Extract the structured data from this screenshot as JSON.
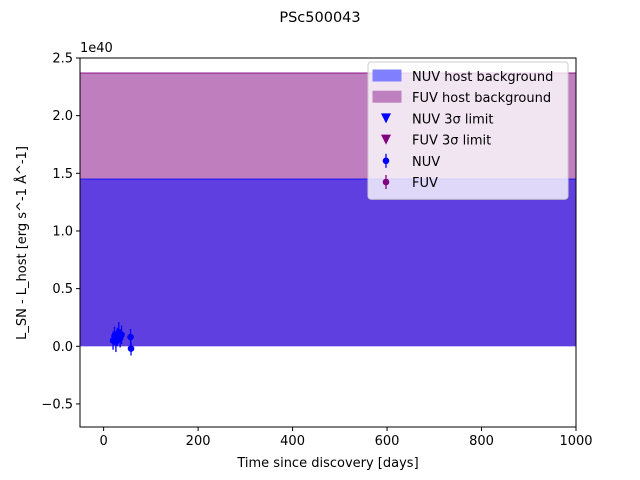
{
  "chart_data": {
    "type": "scatter",
    "title": "PSc500043",
    "xlabel": "Time since discovery [days]",
    "ylabel": "L_SN - L_host [erg s^-1 Å^-1]",
    "y_offset_label": "1e40",
    "xlim": [
      -50,
      1000
    ],
    "ylim": [
      -0.7,
      2.5
    ],
    "x_ticks": [
      0,
      200,
      400,
      600,
      800,
      1000
    ],
    "y_ticks": [
      -0.5,
      0.0,
      0.5,
      1.0,
      1.5,
      2.0,
      2.5
    ],
    "x_tick_labels": [
      "0",
      "200",
      "400",
      "600",
      "800",
      "1000"
    ],
    "y_tick_labels": [
      "−0.5",
      "0.0",
      "0.5",
      "1.0",
      "1.5",
      "2.0",
      "2.5"
    ],
    "grid": false,
    "legend_position": "top-right",
    "bands": [
      {
        "name": "NUV host background",
        "y_min": 0.0,
        "y_max": 1.45,
        "color": "#0000ff",
        "alpha": 0.5
      },
      {
        "name": "FUV host background",
        "y_min": 0.0,
        "y_max": 2.37,
        "color": "#800080",
        "alpha": 0.5
      }
    ],
    "legend": [
      {
        "label": "NUV host background",
        "marker": "patch",
        "color": "#8080ff"
      },
      {
        "label": "FUV host background",
        "marker": "patch",
        "color": "#bf80bf"
      },
      {
        "label": "NUV 3σ limit",
        "marker": "triangle-down",
        "color": "#0000ff"
      },
      {
        "label": "FUV 3σ limit",
        "marker": "triangle-down",
        "color": "#800080"
      },
      {
        "label": "NUV",
        "marker": "errorbar-point",
        "color": "#0000ff"
      },
      {
        "label": "FUV",
        "marker": "errorbar-point",
        "color": "#800080"
      }
    ],
    "series": [
      {
        "name": "NUV",
        "color": "#0000ff",
        "points": [
          {
            "x": 20,
            "y": 0.05,
            "err": 0.08
          },
          {
            "x": 23,
            "y": 0.09,
            "err": 0.08
          },
          {
            "x": 26,
            "y": 0.04,
            "err": 0.09
          },
          {
            "x": 29,
            "y": 0.08,
            "err": 0.08
          },
          {
            "x": 32,
            "y": 0.12,
            "err": 0.09
          },
          {
            "x": 35,
            "y": 0.07,
            "err": 0.08
          },
          {
            "x": 38,
            "y": 0.1,
            "err": 0.08
          },
          {
            "x": 57,
            "y": 0.08,
            "err": 0.07
          },
          {
            "x": 58,
            "y": -0.02,
            "err": 0.06
          }
        ]
      },
      {
        "name": "FUV",
        "color": "#800080",
        "points": []
      },
      {
        "name": "NUV 3σ limit",
        "color": "#0000ff",
        "points": []
      },
      {
        "name": "FUV 3σ limit",
        "color": "#800080",
        "points": []
      }
    ]
  }
}
